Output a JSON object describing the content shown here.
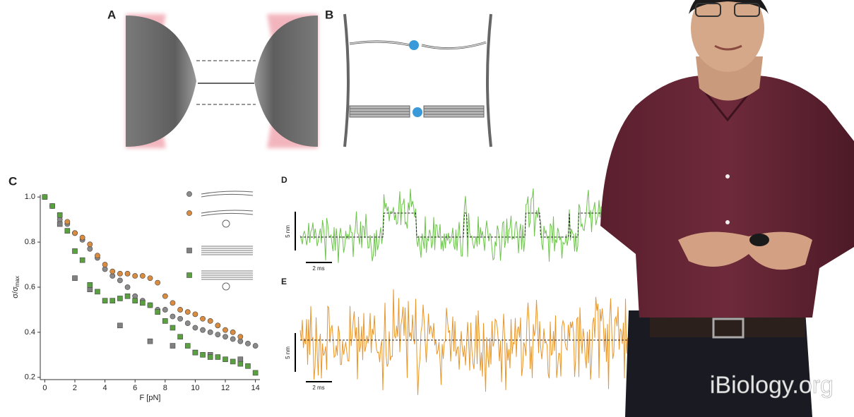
{
  "panels": {
    "a": "A",
    "b": "B",
    "c": "C",
    "d": "D",
    "e": "E"
  },
  "chart_data": {
    "type": "scatter",
    "x_label": "F [pN]",
    "y_label": "σ/σ",
    "y_label_sub": "max",
    "xlim": [
      -0.3,
      14.3
    ],
    "ylim": [
      0.19,
      1.01
    ],
    "xticks": [
      0,
      2,
      4,
      6,
      8,
      10,
      12,
      14
    ],
    "yticks": [
      0.2,
      0.4,
      0.6,
      0.8,
      {
        "value": 1,
        "label": "1.0"
      }
    ],
    "series": [
      {
        "color": "#8a8a8a",
        "marker": "circle",
        "x": [
          0,
          0.5,
          1,
          1.5,
          2,
          2.5,
          3,
          3.5,
          4,
          4.5,
          5,
          5.5,
          6,
          6.5,
          7,
          7.5,
          8,
          8.5,
          9,
          9.5,
          10,
          10.5,
          11,
          11.5,
          12,
          12.5,
          13,
          13.5,
          14
        ],
        "values": [
          1.0,
          0.96,
          0.9,
          0.88,
          0.84,
          0.81,
          0.77,
          0.73,
          0.68,
          0.65,
          0.63,
          0.6,
          0.56,
          0.54,
          0.52,
          0.5,
          0.5,
          0.47,
          0.46,
          0.44,
          0.42,
          0.41,
          0.4,
          0.39,
          0.38,
          0.37,
          0.36,
          0.35,
          0.34
        ]
      },
      {
        "color": "#d98c3f",
        "marker": "circle",
        "x": [
          1.5,
          2,
          2.5,
          3,
          3.5,
          4,
          4.5,
          5,
          5.5,
          6,
          6.5,
          7,
          7.5,
          8,
          8.5,
          9,
          9.5,
          10,
          10.5,
          11,
          11.5,
          12,
          12.5,
          13
        ],
        "values": [
          0.89,
          0.84,
          0.82,
          0.79,
          0.74,
          0.7,
          0.67,
          0.66,
          0.66,
          0.65,
          0.65,
          0.64,
          0.62,
          0.56,
          0.53,
          0.5,
          0.49,
          0.48,
          0.46,
          0.45,
          0.43,
          0.41,
          0.4,
          0.38
        ]
      },
      {
        "color": "#808080",
        "marker": "square",
        "x": [
          1,
          2,
          3,
          5,
          7,
          8.5,
          10,
          11,
          13
        ],
        "values": [
          0.88,
          0.64,
          0.59,
          0.43,
          0.36,
          0.34,
          0.31,
          0.3,
          0.28
        ]
      },
      {
        "color": "#5aa040",
        "marker": "square",
        "x": [
          0,
          0.5,
          1,
          1.5,
          2,
          2.5,
          3,
          3.5,
          4,
          4.5,
          5,
          5.5,
          6,
          6.5,
          7,
          7.5,
          8,
          8.5,
          9,
          9.5,
          10,
          10.5,
          11,
          11.5,
          12,
          12.5,
          13,
          13.5,
          14
        ],
        "values": [
          1.0,
          0.96,
          0.92,
          0.85,
          0.76,
          0.72,
          0.61,
          0.58,
          0.54,
          0.54,
          0.55,
          0.56,
          0.54,
          0.53,
          0.52,
          0.49,
          0.45,
          0.42,
          0.38,
          0.34,
          0.31,
          0.3,
          0.29,
          0.29,
          0.28,
          0.27,
          0.26,
          0.25,
          0.22
        ]
      }
    ]
  },
  "traces": {
    "d": {
      "scale_y": "5 nm",
      "scale_x": "2 ms"
    },
    "e": {
      "scale_y": "5 nm",
      "scale_x": "2 ms"
    }
  },
  "watermark": "iBiology.org"
}
